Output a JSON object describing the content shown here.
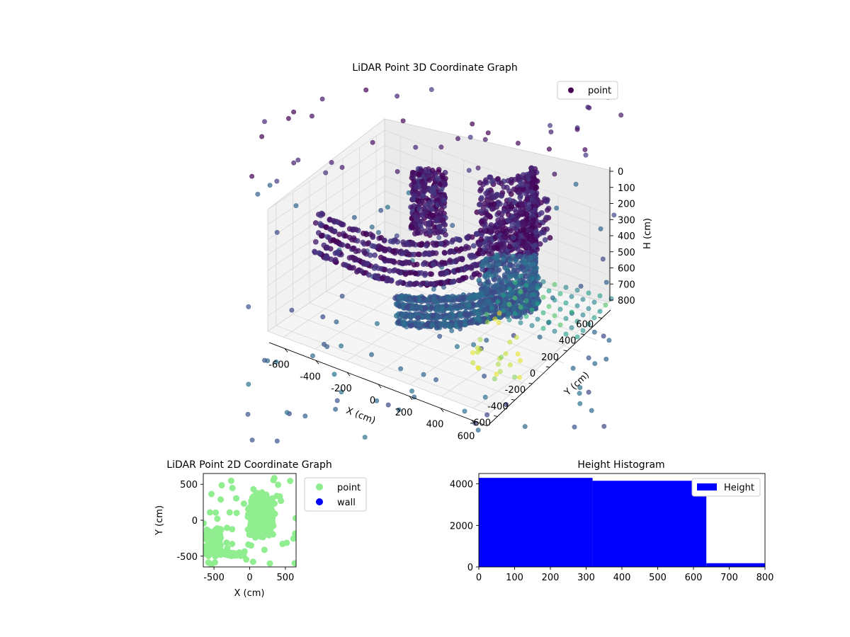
{
  "chart_data": [
    {
      "type": "scatter",
      "projection": "3d",
      "title": "LiDAR Point 3D Coordinate Graph",
      "xlabel": "X (cm)",
      "ylabel": "Y (cm)",
      "zlabel": "H (cm)",
      "xlim": [
        -700,
        700
      ],
      "ylim": [
        -700,
        700
      ],
      "zlim": [
        0,
        800
      ],
      "z_inverted": true,
      "xticks": [
        -600,
        -400,
        -200,
        0,
        200,
        400,
        600
      ],
      "yticks": [
        -600,
        -400,
        -200,
        0,
        200,
        400,
        600
      ],
      "zticks": [
        0,
        100,
        200,
        300,
        400,
        500,
        600,
        700,
        800
      ],
      "colormap": "viridis",
      "legend": {
        "entries": [
          "point"
        ],
        "placement": "upper-right",
        "marker_color": "#440154"
      },
      "grid": true
    },
    {
      "type": "scatter",
      "title": "LiDAR Point 2D Coordinate Graph",
      "xlabel": "X (cm)",
      "ylabel": "Y (cm)",
      "xlim": [
        -650,
        650
      ],
      "ylim": [
        -650,
        650
      ],
      "xticks": [
        -500,
        0,
        500
      ],
      "yticks": [
        -500,
        0,
        500
      ],
      "series": [
        {
          "name": "point",
          "color": "#90ee90"
        },
        {
          "name": "wall",
          "color": "#0000ff"
        }
      ],
      "legend": {
        "placement": "outside-right"
      },
      "grid": false
    },
    {
      "type": "bar",
      "title": "Height Histogram",
      "xlabel": "",
      "ylabel": "",
      "xlim": [
        0,
        800
      ],
      "ylim": [
        0,
        4500
      ],
      "xticks": [
        0,
        100,
        200,
        300,
        400,
        500,
        600,
        700,
        800
      ],
      "yticks": [
        0,
        2000,
        4000
      ],
      "bins": [
        {
          "x0": 0,
          "x1": 318,
          "count": 4290
        },
        {
          "x0": 318,
          "x1": 636,
          "count": 4150
        },
        {
          "x0": 636,
          "x1": 800,
          "count": 180
        }
      ],
      "series": [
        {
          "name": "Height",
          "color": "#0000ff"
        }
      ],
      "legend": {
        "placement": "upper-right"
      },
      "grid": false
    }
  ]
}
